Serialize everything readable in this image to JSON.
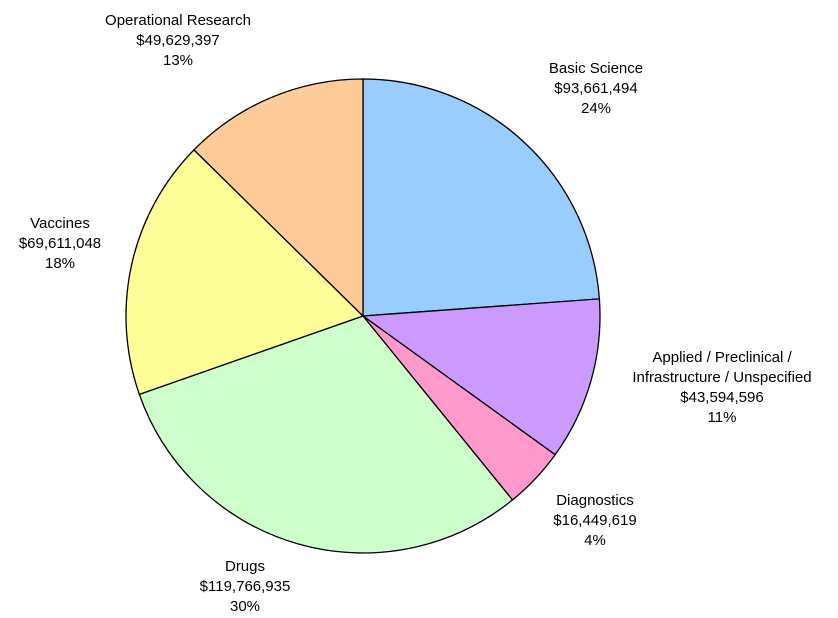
{
  "chart_data": {
    "type": "pie",
    "title": "",
    "slices": [
      {
        "label": "Basic Science",
        "amount": "$93,661,494",
        "percent": "24%",
        "value": 93661494,
        "color": "#99ccff"
      },
      {
        "label": "Applied / Preclinical / Infrastructure / Unspecified",
        "label_lines": [
          "Applied / Preclinical /",
          "Infrastructure / Unspecified"
        ],
        "amount": "$43,594,596",
        "percent": "11%",
        "value": 43594596,
        "color": "#cc99ff"
      },
      {
        "label": "Diagnostics",
        "amount": "$16,449,619",
        "percent": "4%",
        "value": 16449619,
        "color": "#ff99cc"
      },
      {
        "label": "Drugs",
        "amount": "$119,766,935",
        "percent": "30%",
        "value": 119766935,
        "color": "#ccffcc"
      },
      {
        "label": "Vaccines",
        "amount": "$69,611,048",
        "percent": "18%",
        "value": 69611048,
        "color": "#ffff99"
      },
      {
        "label": "Operational Research",
        "amount": "$49,629,397",
        "percent": "13%",
        "value": 49629397,
        "color": "#ffcc99"
      }
    ],
    "legend": "none",
    "outline_color": "#000000"
  }
}
